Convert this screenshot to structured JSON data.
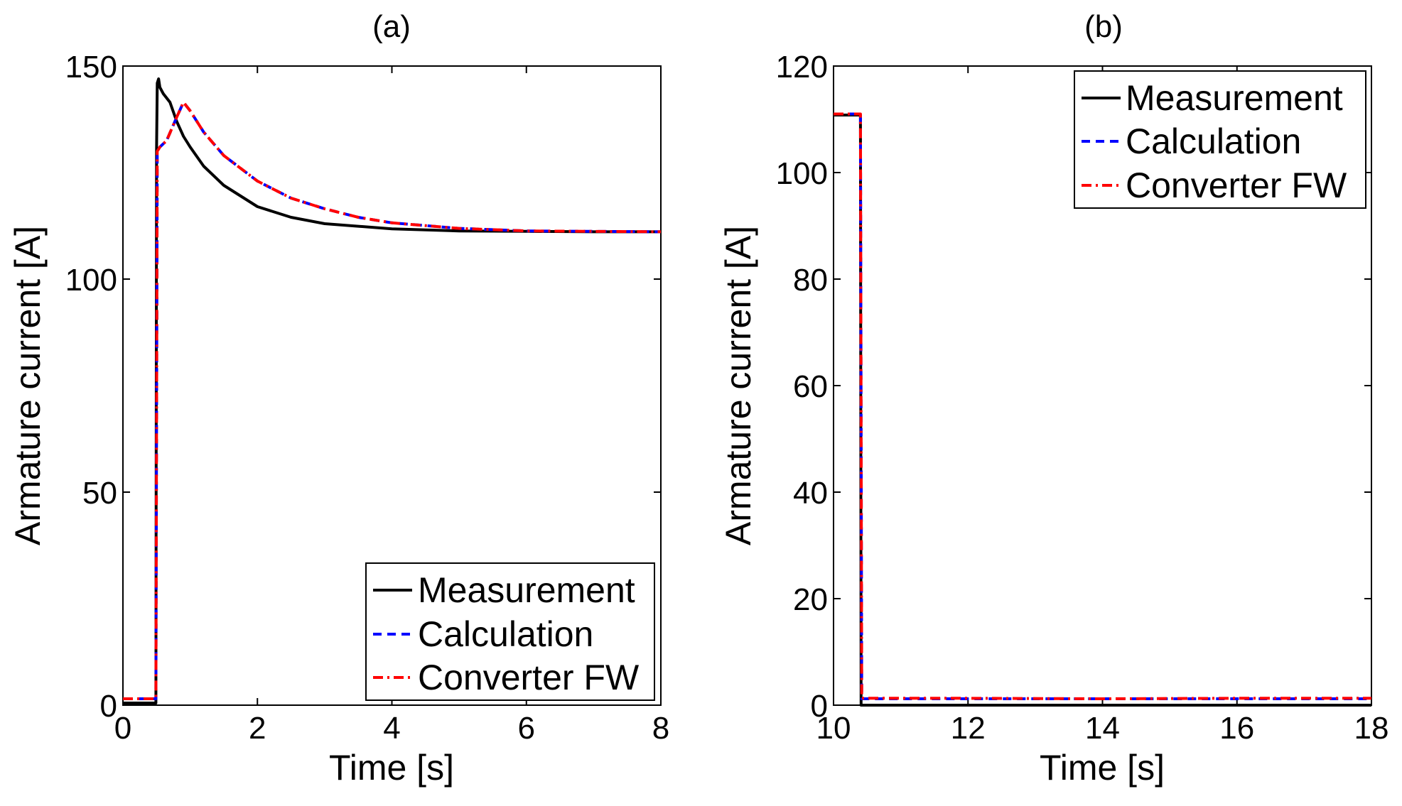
{
  "chart_data": [
    {
      "type": "line",
      "title": "(a)",
      "xlabel": "Time [s]",
      "ylabel": "Armature current [A]",
      "xlim": [
        0,
        8
      ],
      "ylim": [
        0,
        150
      ],
      "xticks": [
        0,
        2,
        4,
        6,
        8
      ],
      "xtick_labels": [
        "0",
        "2",
        "4",
        "6",
        "8"
      ],
      "yticks": [
        0,
        50,
        100,
        150
      ],
      "ytick_labels": [
        "0",
        "50",
        "100",
        "150"
      ],
      "grid": false,
      "legend_position": "bottom-right",
      "series": [
        {
          "name": "Measurement",
          "color": "#000000",
          "dash": "solid",
          "x": [
            0,
            0.2,
            0.49,
            0.5,
            0.51,
            0.53,
            0.55,
            0.6,
            0.7,
            0.8,
            0.9,
            1.0,
            1.2,
            1.5,
            2.0,
            2.5,
            3.0,
            4.0,
            5.0,
            6.0,
            7.0,
            8.0
          ],
          "y": [
            0.5,
            0.5,
            0.5,
            130,
            146,
            147,
            145,
            143.5,
            141.5,
            137,
            133.5,
            131,
            126.5,
            122,
            117,
            114.5,
            113,
            111.8,
            111.3,
            111.2,
            111.1,
            111.1
          ]
        },
        {
          "name": "Calculation",
          "color": "#0000ff",
          "dash": "dashed",
          "x": [
            0,
            0.2,
            0.49,
            0.51,
            0.55,
            0.65,
            0.8,
            0.9,
            1.0,
            1.2,
            1.5,
            2.0,
            2.5,
            3.0,
            3.5,
            4.0,
            5.0,
            6.0,
            7.0,
            8.0
          ],
          "y": [
            1.5,
            1.5,
            1.5,
            130,
            131,
            132.5,
            138,
            141.5,
            139.5,
            134.5,
            129,
            123,
            119,
            116.5,
            114.5,
            113.2,
            111.9,
            111.3,
            111.2,
            111.1
          ]
        },
        {
          "name": "Converter FW",
          "color": "#ff0000",
          "dash": "dashdot",
          "x": [
            0,
            0.2,
            0.49,
            0.51,
            0.55,
            0.65,
            0.8,
            0.9,
            1.0,
            1.2,
            1.5,
            2.0,
            2.5,
            3.0,
            3.5,
            4.0,
            5.0,
            6.0,
            7.0,
            8.0
          ],
          "y": [
            1.5,
            1.5,
            1.5,
            130,
            131,
            132.5,
            138,
            141.5,
            139.5,
            134.5,
            129,
            123,
            119,
            116.5,
            114.5,
            113.2,
            111.9,
            111.3,
            111.2,
            111.1
          ]
        }
      ]
    },
    {
      "type": "line",
      "title": "(b)",
      "xlabel": "Time [s]",
      "ylabel": "Armature current [A]",
      "xlim": [
        10,
        18
      ],
      "ylim": [
        0,
        120
      ],
      "xticks": [
        10,
        12,
        14,
        16,
        18
      ],
      "xtick_labels": [
        "10",
        "12",
        "14",
        "16",
        "18"
      ],
      "yticks": [
        0,
        20,
        40,
        60,
        80,
        100,
        120
      ],
      "ytick_labels": [
        "0",
        "20",
        "40",
        "60",
        "80",
        "100",
        "120"
      ],
      "grid": false,
      "legend_position": "top-right",
      "series": [
        {
          "name": "Measurement",
          "color": "#000000",
          "dash": "solid",
          "x": [
            10,
            10.39,
            10.4,
            10.41,
            12,
            14,
            16,
            18
          ],
          "y": [
            110.8,
            110.8,
            110.8,
            0,
            0,
            0,
            0,
            0
          ]
        },
        {
          "name": "Calculation",
          "color": "#0000ff",
          "dash": "dashed",
          "x": [
            10,
            10.39,
            10.4,
            10.42,
            12,
            14,
            16,
            18
          ],
          "y": [
            111,
            111,
            111,
            1.2,
            1.2,
            1.2,
            1.2,
            1.2
          ]
        },
        {
          "name": "Converter FW",
          "color": "#ff0000",
          "dash": "dashdot",
          "x": [
            10,
            10.39,
            10.4,
            10.42,
            12,
            14,
            16,
            18
          ],
          "y": [
            111,
            111,
            111,
            1.3,
            1.3,
            1.2,
            1.3,
            1.3
          ]
        }
      ]
    }
  ]
}
